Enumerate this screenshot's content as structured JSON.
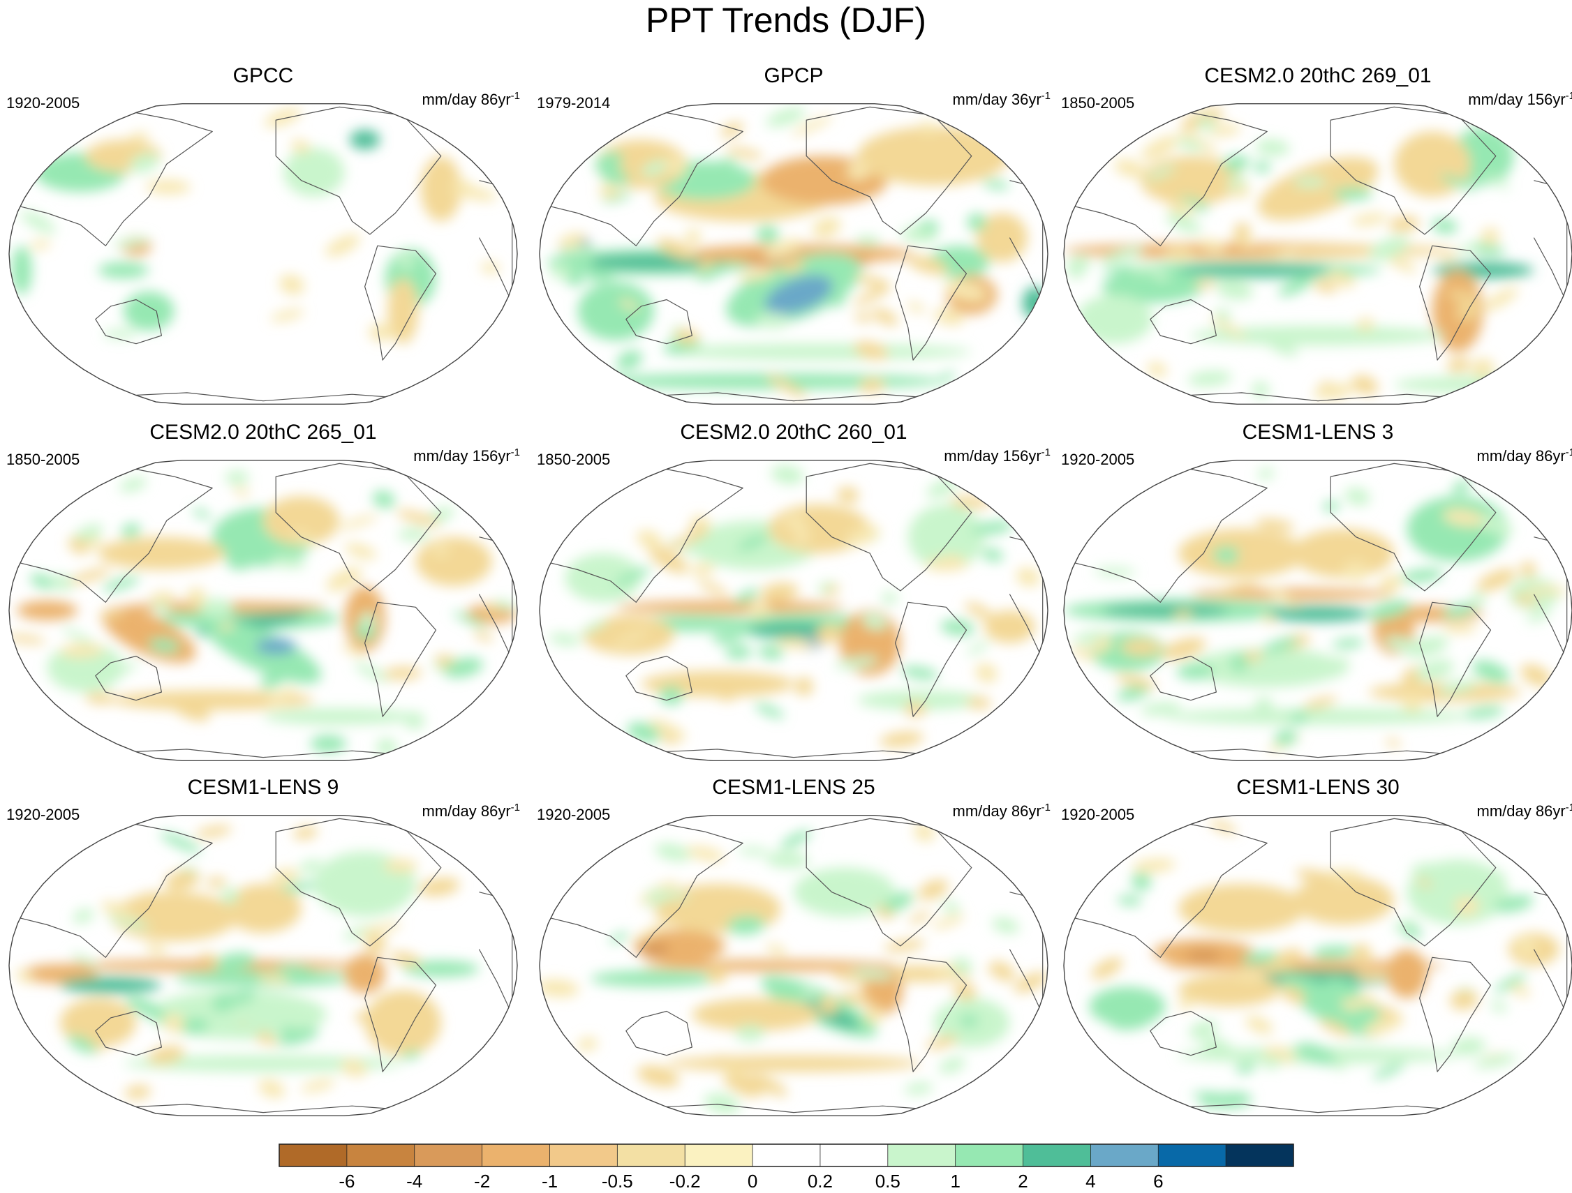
{
  "title": "PPT Trends (DJF)",
  "panels": [
    {
      "name": "GPCC",
      "period": "1920-2005",
      "units": "mm/day 86yr",
      "sup": "-1",
      "style": "obs-land"
    },
    {
      "name": "GPCP",
      "period": "1979-2014",
      "units": "mm/day 36yr",
      "sup": "-1",
      "style": "gpcp"
    },
    {
      "name": "CESM2.0 20thC 269_01",
      "period": "1850-2005",
      "units": "mm/day 156yr",
      "sup": "-1",
      "style": "c269"
    },
    {
      "name": "CESM2.0 20thC 265_01",
      "period": "1850-2005",
      "units": "mm/day 156yr",
      "sup": "-1",
      "style": "c265"
    },
    {
      "name": "CESM2.0 20thC 260_01",
      "period": "1850-2005",
      "units": "mm/day 156yr",
      "sup": "-1",
      "style": "c260"
    },
    {
      "name": "CESM1-LENS 3",
      "period": "1920-2005",
      "units": "mm/day 86yr",
      "sup": "-1",
      "style": "l3"
    },
    {
      "name": "CESM1-LENS 9",
      "period": "1920-2005",
      "units": "mm/day 86yr",
      "sup": "-1",
      "style": "l9"
    },
    {
      "name": "CESM1-LENS 25",
      "period": "1920-2005",
      "units": "mm/day 86yr",
      "sup": "-1",
      "style": "l25"
    },
    {
      "name": "CESM1-LENS 30",
      "period": "1920-2005",
      "units": "mm/day 86yr",
      "sup": "-1",
      "style": "l30"
    }
  ],
  "colorbar": {
    "labels": [
      "-6",
      "-4",
      "-2",
      "-1",
      "-0.5",
      "-0.2",
      "0",
      "0.2",
      "0.5",
      "1",
      "2",
      "4",
      "6"
    ],
    "colors": [
      "#b06a28",
      "#c8843f",
      "#d99a5a",
      "#ebb26d",
      "#f2c98a",
      "#f3e0a4",
      "#fbf2c1",
      "#ffffff",
      "#ffffff",
      "#c9f5cc",
      "#96e8b2",
      "#4fbe98",
      "#6aa8c8",
      "#0869a8",
      "#04345c"
    ]
  }
}
